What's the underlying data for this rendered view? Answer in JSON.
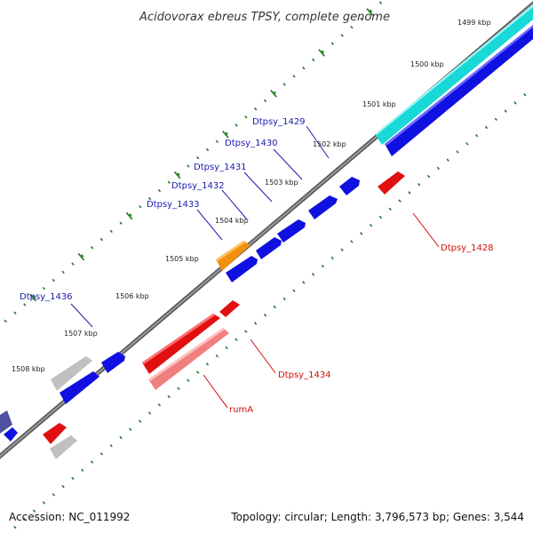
{
  "title": "Acidovorax ebreus TPSY, complete genome",
  "accession": "Accession: NC_011992",
  "summary": "Topology: circular; Length: 3,796,573 bp; Genes: 3,544",
  "colors": {
    "backbone": "#8a8a8a",
    "tick": "#1f7a1f",
    "plus_gene": "#1010e0",
    "minus_gene": "#e01010",
    "plus_label": "#1a1ab0",
    "minus_label": "#d01010",
    "cyan_feature": "#18d8d8",
    "orange_feature": "#f09010",
    "pink_feature": "#f08080",
    "gray_feature": "#c0c0c0",
    "navy_feature": "#5050a0"
  },
  "tick_labels": [
    "1499 kbp",
    "1500 kbp",
    "1501 kbp",
    "1502 kbp",
    "1503 kbp",
    "1504 kbp",
    "1505 kbp",
    "1506 kbp",
    "1507 kbp",
    "1508 kbp"
  ],
  "plus_labels": [
    "Dtpsy_1429",
    "Dtpsy_1430",
    "Dtpsy_1431",
    "Dtpsy_1432",
    "Dtpsy_1433",
    "Dtpsy_1436"
  ],
  "minus_labels": [
    "Dtpsy_1428",
    "Dtpsy_1434",
    "rumA"
  ]
}
